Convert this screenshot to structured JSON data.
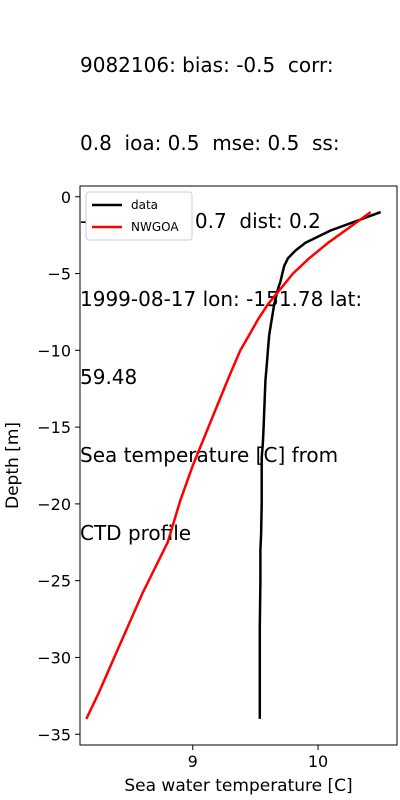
{
  "title_lines": [
    "9082106: bias: -0.5  corr:",
    "0.8  ioa: 0.5  mse: 0.5  ss:",
    "-8.6  rmse: 0.7  dist: 0.2",
    "1999-08-17 lon: -151.78 lat:",
    "59.48",
    "Sea temperature [C] from",
    "CTD profile"
  ],
  "chart_data": {
    "type": "line",
    "title": "9082106: bias: -0.5  corr: 0.8  ioa: 0.5  mse: 0.5  ss: -8.6  rmse: 0.7  dist: 0.2 1999-08-17 lon: -151.78 lat: 59.48 Sea temperature [C] from CTD profile",
    "xlabel": "Sea water temperature [C]",
    "ylabel": "Depth [m]",
    "xlim": [
      8.1,
      10.63
    ],
    "ylim": [
      -35.7,
      0.7
    ],
    "xticks": [
      9,
      10
    ],
    "yticks": [
      0,
      -5,
      -10,
      -15,
      -20,
      -25,
      -30,
      -35
    ],
    "grid": false,
    "legend_position": "upper left",
    "series": [
      {
        "name": "data",
        "color": "#000000",
        "points": [
          [
            10.5,
            -1
          ],
          [
            10.3,
            -1.6
          ],
          [
            10.1,
            -2.2
          ],
          [
            9.9,
            -3
          ],
          [
            9.82,
            -3.5
          ],
          [
            9.76,
            -4
          ],
          [
            9.73,
            -4.5
          ],
          [
            9.7,
            -5.5
          ],
          [
            9.68,
            -6
          ],
          [
            9.65,
            -7
          ],
          [
            9.63,
            -8
          ],
          [
            9.61,
            -9
          ],
          [
            9.6,
            -10
          ],
          [
            9.59,
            -11
          ],
          [
            9.58,
            -12
          ],
          [
            9.575,
            -13
          ],
          [
            9.57,
            -14
          ],
          [
            9.565,
            -15
          ],
          [
            9.56,
            -16
          ],
          [
            9.55,
            -17
          ],
          [
            9.55,
            -20
          ],
          [
            9.545,
            -22
          ],
          [
            9.54,
            -23
          ],
          [
            9.54,
            -25
          ],
          [
            9.535,
            -28
          ],
          [
            9.535,
            -30
          ],
          [
            9.535,
            -32
          ],
          [
            9.535,
            -34
          ]
        ]
      },
      {
        "name": "NWGOA",
        "color": "#ff0000",
        "points": [
          [
            10.42,
            -1
          ],
          [
            10.25,
            -2
          ],
          [
            10.08,
            -3
          ],
          [
            9.93,
            -4
          ],
          [
            9.8,
            -5
          ],
          [
            9.7,
            -6
          ],
          [
            9.6,
            -7
          ],
          [
            9.52,
            -8
          ],
          [
            9.45,
            -9
          ],
          [
            9.38,
            -10
          ],
          [
            9.3,
            -11.5
          ],
          [
            9.2,
            -13.5
          ],
          [
            9.1,
            -15.5
          ],
          [
            9.0,
            -17.5
          ],
          [
            8.9,
            -19.8
          ],
          [
            8.8,
            -22.5
          ],
          [
            8.6,
            -25.8
          ],
          [
            8.4,
            -29.5
          ],
          [
            8.25,
            -32.3
          ],
          [
            8.15,
            -34
          ]
        ]
      }
    ]
  }
}
